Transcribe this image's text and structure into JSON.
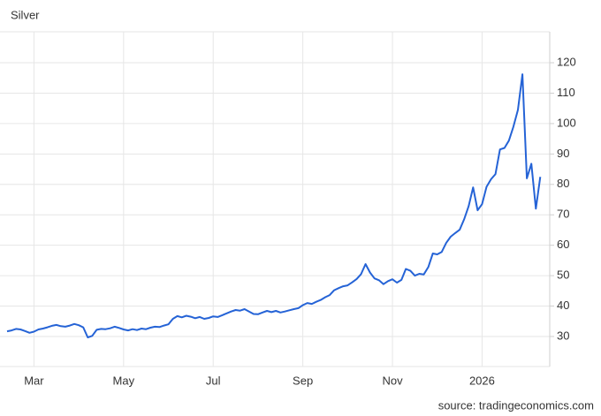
{
  "chart_data": {
    "type": "line",
    "title": "Silver",
    "source": "source: tradingeconomics.com",
    "categories": [
      null,
      null,
      null,
      null,
      null,
      null,
      "Mar",
      null,
      null,
      null,
      null,
      null,
      null,
      null,
      null,
      null,
      null,
      null,
      null,
      null,
      null,
      null,
      null,
      null,
      null,
      null,
      "May",
      null,
      null,
      null,
      null,
      null,
      null,
      null,
      null,
      null,
      null,
      null,
      null,
      null,
      null,
      null,
      null,
      null,
      null,
      null,
      "Jul",
      null,
      null,
      null,
      null,
      null,
      null,
      null,
      null,
      null,
      null,
      null,
      null,
      null,
      null,
      null,
      null,
      null,
      null,
      null,
      "Sep",
      null,
      null,
      null,
      null,
      null,
      null,
      null,
      null,
      null,
      null,
      null,
      null,
      null,
      null,
      null,
      null,
      null,
      null,
      null,
      "Nov",
      null,
      null,
      null,
      null,
      null,
      null,
      null,
      null,
      null,
      null,
      null,
      null,
      null,
      null,
      null,
      null,
      null,
      null,
      null,
      "2026",
      null,
      null,
      null,
      null,
      null,
      null,
      null,
      null,
      null,
      null,
      null,
      null,
      null
    ],
    "series": [
      {
        "name": "Silver",
        "color": "#2563d6",
        "values": [
          31.7,
          32.0,
          32.5,
          32.3,
          31.8,
          31.2,
          31.6,
          32.3,
          32.6,
          33.0,
          33.5,
          33.8,
          33.4,
          33.2,
          33.6,
          34.1,
          33.7,
          33.0,
          29.7,
          30.2,
          32.2,
          32.5,
          32.4,
          32.7,
          33.2,
          32.8,
          32.3,
          32.0,
          32.4,
          32.1,
          32.6,
          32.4,
          32.9,
          33.2,
          33.1,
          33.6,
          34.0,
          35.8,
          36.7,
          36.3,
          36.8,
          36.5,
          36.0,
          36.4,
          35.8,
          36.1,
          36.6,
          36.4,
          37.0,
          37.6,
          38.2,
          38.7,
          38.5,
          39.0,
          38.2,
          37.4,
          37.3,
          37.9,
          38.4,
          38.0,
          38.4,
          37.9,
          38.2,
          38.6,
          39.0,
          39.3,
          40.3,
          41.0,
          40.7,
          41.4,
          42.0,
          42.9,
          43.6,
          45.2,
          45.9,
          46.5,
          46.8,
          47.8,
          48.9,
          50.5,
          53.8,
          51.0,
          49.1,
          48.5,
          47.2,
          48.2,
          48.8,
          47.7,
          48.6,
          52.2,
          51.6,
          50.0,
          50.6,
          50.4,
          52.8,
          57.3,
          57.0,
          57.8,
          60.8,
          62.8,
          64.0,
          65.1,
          68.5,
          72.8,
          79.0,
          71.5,
          73.5,
          79.2,
          81.7,
          83.4,
          91.5,
          92.0,
          94.4,
          99.0,
          104.5,
          116.2,
          82.0,
          86.8,
          72.0,
          82.5
        ]
      }
    ],
    "ylim": [
      20,
      130
    ],
    "yticks": [
      30,
      40,
      50,
      60,
      70,
      80,
      90,
      100,
      110,
      120
    ],
    "grid": true
  }
}
